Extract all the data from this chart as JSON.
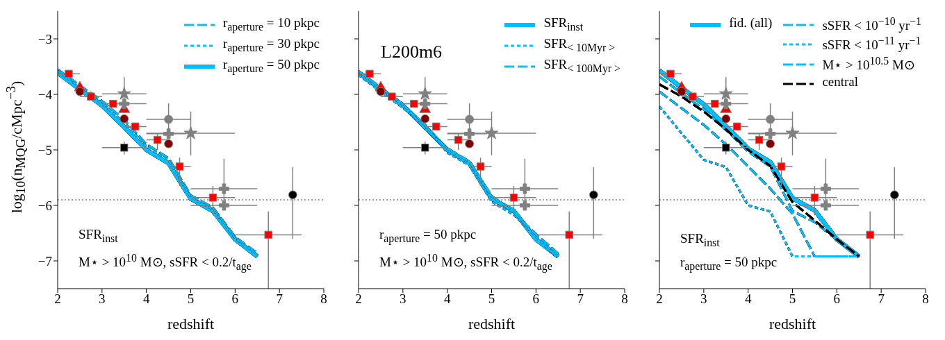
{
  "chart_data": [
    {
      "type": "line",
      "xlabel": "redshift",
      "ylabel": "log$_{10}$(n$_{MQG}$/cMpc$^{−3}$)",
      "annotations": [
        "SFR$_{inst}$",
        "M⋆ > 10$^{10}$ M⊙,  sSFR < 0.2/t$_{age}$"
      ],
      "legend": "top right",
      "x": [
        2,
        2.5,
        3,
        3.5,
        4,
        4.5,
        5,
        5.5,
        6,
        6.5
      ],
      "xlim": [
        2,
        8
      ],
      "xticks": [
        2,
        3,
        4,
        5,
        6,
        7,
        8
      ],
      "ylim": [
        -7.5,
        -2.5
      ],
      "yticks": [
        {
          "value": -3,
          "label": "−3"
        },
        {
          "value": -4,
          "label": "−4"
        },
        {
          "value": -5,
          "label": "−5"
        },
        {
          "value": -6,
          "label": "−6"
        },
        {
          "value": -7,
          "label": "−7"
        }
      ],
      "ref_lines": [
        {
          "axis": "y",
          "value": -5.9,
          "color": "#808080",
          "line_style": "dotted"
        }
      ],
      "series": [
        {
          "name": "r$_{aperture}$ = 10 pkpc",
          "color": "#00bfff",
          "line_style": "dashed",
          "values": [
            -3.55,
            -3.84,
            -4.12,
            -4.46,
            -4.9,
            -5.15,
            -5.82,
            -6.04,
            -6.57,
            -6.86
          ]
        },
        {
          "name": "r$_{aperture}$ = 30 pkpc",
          "color": "#00bfff",
          "line_style": "dotted",
          "values": [
            -3.58,
            -3.87,
            -4.16,
            -4.51,
            -4.94,
            -5.19,
            -5.85,
            -6.07,
            -6.59,
            -6.89
          ]
        },
        {
          "name": "r$_{aperture}$ = 50 pkpc",
          "color": "#00bfff",
          "line_style": "solid",
          "values": [
            -3.61,
            -3.91,
            -4.2,
            -4.59,
            -5.0,
            -5.24,
            -5.88,
            -6.1,
            -6.61,
            -6.92
          ]
        },
        {
          "type": "scatter",
          "color": "#ff0000",
          "marker": "square",
          "x": [
            2.25,
            2.75,
            3.25,
            3.75,
            4.25,
            4.75,
            5.5,
            6.75
          ],
          "values": [
            -3.63,
            -4.04,
            -4.17,
            -4.58,
            -4.82,
            -5.3,
            -5.86,
            -6.53
          ],
          "xerrors": [
            [
              2.0,
              2.5
            ],
            [
              2.5,
              3.0
            ],
            [
              3.0,
              3.5
            ],
            [
              3.5,
              4.0
            ],
            [
              4.0,
              4.5
            ],
            [
              4.5,
              5.0
            ],
            [
              5.0,
              6.0
            ],
            [
              6.0,
              7.5
            ]
          ],
          "errors": [
            null,
            null,
            null,
            null,
            [
              -5.0,
              -4.7
            ],
            [
              -5.65,
              -5.14
            ],
            [
              -6.18,
              -5.65
            ],
            [
              -7.5,
              -6.11
            ]
          ]
        },
        {
          "type": "scatter",
          "color": "#ff0000",
          "marker": "triangle",
          "x": [
            2.5,
            3.5
          ],
          "values": [
            -3.88,
            -4.27
          ]
        },
        {
          "type": "scatter",
          "color": "#800000",
          "marker": "circle",
          "x": [
            2.5,
            3.5,
            4.5
          ],
          "values": [
            -3.95,
            -4.44,
            -4.89
          ]
        },
        {
          "type": "scatter",
          "color": "#000000",
          "marker": "square",
          "x": [
            3.5
          ],
          "values": [
            -4.96
          ],
          "xerrors": [
            [
              3.0,
              4.0
            ]
          ],
          "errors": [
            [
              -5.08,
              -4.85
            ]
          ]
        },
        {
          "type": "scatter",
          "color": "#000000",
          "marker": "circle",
          "x": [
            7.3
          ],
          "values": [
            -5.81
          ],
          "errors": [
            [
              -6.6,
              -5.31
            ]
          ]
        },
        {
          "type": "scatter",
          "color": "#808080",
          "marker": "star",
          "x": [
            3.5,
            5.0
          ],
          "values": [
            -3.99,
            -4.7
          ],
          "xerrors": [
            [
              3.0,
              4.0
            ],
            [
              4.0,
              6.0
            ]
          ],
          "errors": [
            [
              -4.31,
              -3.69
            ],
            [
              -5.1,
              -4.31
            ]
          ]
        },
        {
          "type": "scatter",
          "color": "#808080",
          "marker": "cross",
          "x": [
            3.5,
            4.5,
            5.75,
            5.75
          ],
          "values": [
            -4.17,
            -4.71,
            -5.7,
            -6.0
          ],
          "xerrors": [
            [
              3.0,
              4.0
            ],
            [
              4.0,
              4.9
            ],
            [
              5.0,
              6.5
            ],
            [
              5.0,
              6.5
            ]
          ],
          "errors": [
            null,
            null,
            [
              -5.9,
              -5.16
            ],
            null
          ]
        },
        {
          "type": "scatter",
          "color": "#808080",
          "marker": "circle",
          "x": [
            4.5
          ],
          "values": [
            -4.45
          ],
          "xerrors": [
            [
              4.0,
              5.0
            ]
          ],
          "errors": [
            [
              -4.71,
              -4.16
            ]
          ]
        }
      ]
    },
    {
      "type": "line",
      "title": "L200m6",
      "xlabel": "redshift",
      "annotations": [
        "r$_{aperture}$ = 50 pkpc",
        "M⋆ > 10$^{10}$ M⊙,  sSFR < 0.2/t$_{age}$"
      ],
      "legend": "top right",
      "tick_labels": "x",
      "x": [
        2,
        2.5,
        3,
        3.5,
        4,
        4.5,
        5,
        5.5,
        6,
        6.5
      ],
      "xlim": [
        2,
        8
      ],
      "xticks": [
        2,
        3,
        4,
        5,
        6,
        7,
        8
      ],
      "ylim": [
        -7.5,
        -2.5
      ],
      "yticks": [
        -3,
        -4,
        -5,
        -6,
        -7
      ],
      "ref_lines": [
        {
          "axis": "y",
          "value": -5.9,
          "color": "#808080",
          "line_style": "dotted"
        }
      ],
      "series": [
        {
          "name": "SFR$_{inst}$",
          "color": "#00bfff",
          "line_style": "solid",
          "values": [
            -3.61,
            -3.91,
            -4.2,
            -4.59,
            -5.0,
            -5.24,
            -5.88,
            -6.1,
            -6.61,
            -6.92
          ]
        },
        {
          "name": "SFR$_{< 10Myr >}$",
          "color": "#00bfff",
          "line_style": "dotted",
          "values": [
            -3.65,
            -3.95,
            -4.24,
            -4.55,
            -5.05,
            -5.28,
            -5.93,
            -6.17,
            -6.56,
            -6.96
          ]
        },
        {
          "name": "SFR$_{< 100Myr >}$",
          "color": "#00bfff",
          "line_style": "dashed",
          "values": [
            -3.58,
            -3.88,
            -4.17,
            -4.62,
            -4.97,
            -5.21,
            -5.83,
            -6.13,
            -6.52,
            -6.87
          ]
        },
        {
          "type": "scatter",
          "color": "#ff0000",
          "marker": "square",
          "x": [
            2.25,
            2.75,
            3.25,
            3.75,
            4.25,
            4.75,
            5.5,
            6.75
          ],
          "values": [
            -3.63,
            -4.04,
            -4.17,
            -4.58,
            -4.82,
            -5.3,
            -5.86,
            -6.53
          ],
          "xerrors": [
            [
              2.0,
              2.5
            ],
            [
              2.5,
              3.0
            ],
            [
              3.0,
              3.5
            ],
            [
              3.5,
              4.0
            ],
            [
              4.0,
              4.5
            ],
            [
              4.5,
              5.0
            ],
            [
              5.0,
              6.0
            ],
            [
              6.0,
              7.5
            ]
          ],
          "errors": [
            null,
            null,
            null,
            null,
            [
              -5.0,
              -4.7
            ],
            [
              -5.65,
              -5.14
            ],
            [
              -6.18,
              -5.65
            ],
            [
              -7.5,
              -6.11
            ]
          ]
        },
        {
          "type": "scatter",
          "color": "#ff0000",
          "marker": "triangle",
          "x": [
            2.5,
            3.5
          ],
          "values": [
            -3.88,
            -4.27
          ]
        },
        {
          "type": "scatter",
          "color": "#800000",
          "marker": "circle",
          "x": [
            2.5,
            3.5,
            4.5
          ],
          "values": [
            -3.95,
            -4.44,
            -4.89
          ]
        },
        {
          "type": "scatter",
          "color": "#000000",
          "marker": "square",
          "x": [
            3.5
          ],
          "values": [
            -4.96
          ],
          "xerrors": [
            [
              3.0,
              4.0
            ]
          ],
          "errors": [
            [
              -5.08,
              -4.85
            ]
          ]
        },
        {
          "type": "scatter",
          "color": "#000000",
          "marker": "circle",
          "x": [
            7.3
          ],
          "values": [
            -5.81
          ],
          "errors": [
            [
              -6.6,
              -5.31
            ]
          ]
        },
        {
          "type": "scatter",
          "color": "#808080",
          "marker": "star",
          "x": [
            3.5,
            5.0
          ],
          "values": [
            -3.99,
            -4.7
          ],
          "xerrors": [
            [
              3.0,
              4.0
            ],
            [
              4.0,
              6.0
            ]
          ],
          "errors": [
            [
              -4.31,
              -3.69
            ],
            [
              -5.1,
              -4.31
            ]
          ]
        },
        {
          "type": "scatter",
          "color": "#808080",
          "marker": "cross",
          "x": [
            3.5,
            4.5,
            5.75,
            5.75
          ],
          "values": [
            -4.17,
            -4.71,
            -5.7,
            -6.0
          ],
          "xerrors": [
            [
              3.0,
              4.0
            ],
            [
              4.0,
              4.9
            ],
            [
              5.0,
              6.5
            ],
            [
              5.0,
              6.5
            ]
          ],
          "errors": [
            null,
            null,
            [
              -5.9,
              -5.16
            ],
            null
          ]
        },
        {
          "type": "scatter",
          "color": "#808080",
          "marker": "circle",
          "x": [
            4.5
          ],
          "values": [
            -4.45
          ],
          "xerrors": [
            [
              4.0,
              5.0
            ]
          ],
          "errors": [
            [
              -4.71,
              -4.16
            ]
          ]
        }
      ]
    },
    {
      "type": "line",
      "xlabel": "redshift",
      "annotations": [
        "SFR$_{inst}$",
        "r$_{aperture}$ = 50 pkpc"
      ],
      "legend": "top",
      "tick_labels": "x",
      "x": [
        2,
        2.5,
        3,
        3.5,
        4,
        4.5,
        5,
        5.5,
        6,
        6.5
      ],
      "xlim": [
        2,
        8
      ],
      "xticks": [
        2,
        3,
        4,
        5,
        6,
        7,
        8
      ],
      "ylim": [
        -7.5,
        -2.5
      ],
      "yticks": [
        -3,
        -4,
        -5,
        -6,
        -7
      ],
      "ref_lines": [
        {
          "axis": "y",
          "value": -5.9,
          "color": "#808080",
          "line_style": "dotted"
        }
      ],
      "series": [
        {
          "name": "fid. (all)",
          "color": "#00bfff",
          "line_style": "solid",
          "values": [
            -3.57,
            -3.88,
            -4.18,
            -4.57,
            -4.98,
            -5.22,
            -5.87,
            -6.09,
            -6.61,
            -6.92
          ]
        },
        {
          "name": "sSFR < 10$^{−10}$ yr$^{−1}$",
          "color": "#00bfff",
          "line_style": "dashed",
          "values": [
            -3.95,
            -4.25,
            -4.55,
            -4.9,
            -5.3,
            -5.7,
            -6.15,
            -6.92,
            -6.92,
            -6.92
          ]
        },
        {
          "name": "sSFR < 10$^{−11}$ yr$^{−1}$",
          "color": "#00bfff",
          "line_style": "dotted",
          "values": [
            -4.22,
            -4.7,
            -5.18,
            -5.31,
            -6.0,
            -6.11,
            -6.92,
            -6.92,
            -6.92,
            -6.92
          ]
        },
        {
          "name": "M⋆ > 10$^{10.5}$ M⊙",
          "color": "#00bfff",
          "line_style": "dashed",
          "values": [
            -3.68,
            -3.98,
            -4.27,
            -4.64,
            -5.03,
            -5.3,
            -6.1,
            -6.3,
            -6.62,
            -6.92
          ]
        },
        {
          "name": "central",
          "color": "#000000",
          "line_style": "dashed",
          "values": [
            -3.82,
            -4.04,
            -4.31,
            -4.63,
            -5.0,
            -5.29,
            -5.94,
            -6.27,
            -6.61,
            -6.92
          ]
        },
        {
          "type": "scatter",
          "color": "#ff0000",
          "marker": "square",
          "x": [
            2.25,
            2.75,
            3.25,
            3.75,
            4.25,
            4.75,
            5.5,
            6.75
          ],
          "values": [
            -3.63,
            -4.04,
            -4.17,
            -4.58,
            -4.82,
            -5.3,
            -5.86,
            -6.53
          ],
          "xerrors": [
            [
              2.0,
              2.5
            ],
            [
              2.5,
              3.0
            ],
            [
              3.0,
              3.5
            ],
            [
              3.5,
              4.0
            ],
            [
              4.0,
              4.5
            ],
            [
              4.5,
              5.0
            ],
            [
              5.0,
              6.0
            ],
            [
              6.0,
              7.5
            ]
          ],
          "errors": [
            null,
            null,
            null,
            null,
            [
              -5.0,
              -4.7
            ],
            [
              -5.65,
              -5.14
            ],
            [
              -6.18,
              -5.65
            ],
            [
              -7.5,
              -6.11
            ]
          ]
        },
        {
          "type": "scatter",
          "color": "#ff0000",
          "marker": "triangle",
          "x": [
            2.5,
            3.5
          ],
          "values": [
            -3.88,
            -4.27
          ]
        },
        {
          "type": "scatter",
          "color": "#800000",
          "marker": "circle",
          "x": [
            2.5,
            3.5,
            4.5
          ],
          "values": [
            -3.95,
            -4.44,
            -4.89
          ]
        },
        {
          "type": "scatter",
          "color": "#000000",
          "marker": "square",
          "x": [
            3.5
          ],
          "values": [
            -4.96
          ],
          "xerrors": [
            [
              3.0,
              4.0
            ]
          ],
          "errors": [
            [
              -5.08,
              -4.85
            ]
          ]
        },
        {
          "type": "scatter",
          "color": "#000000",
          "marker": "circle",
          "x": [
            7.3
          ],
          "values": [
            -5.81
          ],
          "errors": [
            [
              -6.6,
              -5.31
            ]
          ]
        },
        {
          "type": "scatter",
          "color": "#808080",
          "marker": "star",
          "x": [
            3.5,
            5.0
          ],
          "values": [
            -3.99,
            -4.7
          ],
          "xerrors": [
            [
              3.0,
              4.0
            ],
            [
              4.0,
              6.0
            ]
          ],
          "errors": [
            [
              -4.31,
              -3.69
            ],
            [
              -5.1,
              -4.31
            ]
          ]
        },
        {
          "type": "scatter",
          "color": "#808080",
          "marker": "cross",
          "x": [
            3.5,
            4.5,
            5.75,
            5.75
          ],
          "values": [
            -4.17,
            -4.71,
            -5.7,
            -6.0
          ],
          "xerrors": [
            [
              3.0,
              4.0
            ],
            [
              4.0,
              4.9
            ],
            [
              5.0,
              6.5
            ],
            [
              5.0,
              6.5
            ]
          ],
          "errors": [
            null,
            null,
            [
              -5.9,
              -5.16
            ],
            null
          ]
        },
        {
          "type": "scatter",
          "color": "#808080",
          "marker": "circle",
          "x": [
            4.5
          ],
          "values": [
            -4.45
          ],
          "xerrors": [
            [
              4.0,
              5.0
            ]
          ],
          "errors": [
            [
              -4.71,
              -4.16
            ]
          ]
        }
      ]
    }
  ]
}
